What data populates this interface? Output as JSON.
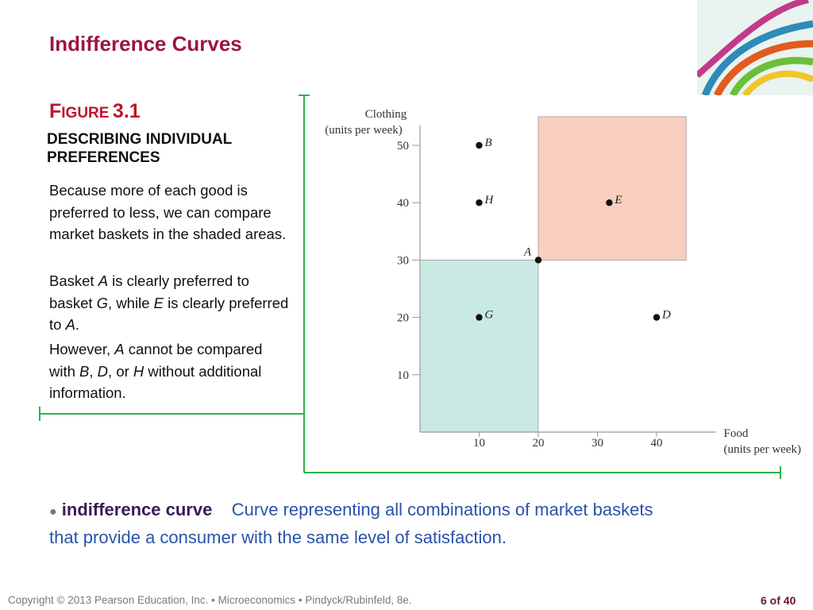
{
  "slide": {
    "title": "Indifference Curves",
    "figure_label_prefix": "F",
    "figure_label_smallcaps": "IGURE",
    "figure_label_number": "3.1",
    "figure_subtitle": "DESCRIBING INDIVIDUAL PREFERENCES"
  },
  "paragraphs": {
    "p1": "Because more of each good is preferred to less, we can compare market baskets in the shaded areas.",
    "p2": {
      "t1": "Basket ",
      "a": "A",
      "t2": " is clearly preferred to basket ",
      "g": "G",
      "t3": ", while ",
      "e": "E",
      "t4": " is clearly preferred to ",
      "a2": "A",
      "t5": "."
    },
    "p3": {
      "t1": "However, ",
      "a": "A",
      "t2": " cannot be compared with ",
      "b": "B",
      "t3": ", ",
      "d": "D",
      "t4": ", or ",
      "h": "H",
      "t5": " without additional information."
    }
  },
  "definition": {
    "bullet": "●",
    "term": "indifference curve",
    "text_line1": "Curve representing all combinations of market baskets",
    "text_line2": "that provide a consumer with the same level of satisfaction."
  },
  "footer": {
    "copyright": "Copyright © 2013  Pearson Education, Inc. •  Microeconomics  •  Pindyck/Rubinfeld, 8e.",
    "page": "6 of 40"
  },
  "colors": {
    "accent_green": "#2eb24a",
    "shade_upper": "#f9cfc0",
    "shade_lower": "#c9e9e3"
  },
  "chart_data": {
    "type": "scatter",
    "ylabel_line1": "Clothing",
    "ylabel_line2": "(units per week)",
    "xlabel_line1": "Food",
    "xlabel_line2": "(units per week)",
    "xlim": [
      0,
      50
    ],
    "ylim": [
      0,
      56
    ],
    "x_ticks": [
      10,
      20,
      30,
      40
    ],
    "y_ticks": [
      10,
      20,
      30,
      40,
      50
    ],
    "points": [
      {
        "label": "A",
        "x": 20,
        "y": 30
      },
      {
        "label": "B",
        "x": 10,
        "y": 50
      },
      {
        "label": "H",
        "x": 10,
        "y": 40
      },
      {
        "label": "E",
        "x": 32,
        "y": 40
      },
      {
        "label": "G",
        "x": 10,
        "y": 20
      },
      {
        "label": "D",
        "x": 40,
        "y": 20
      }
    ],
    "shaded_regions": [
      {
        "x_from": 20,
        "x_to": 45,
        "y_from": 30,
        "y_to": 55
      },
      {
        "x_from": 0,
        "x_to": 20,
        "y_from": 0,
        "y_to": 30
      }
    ]
  }
}
